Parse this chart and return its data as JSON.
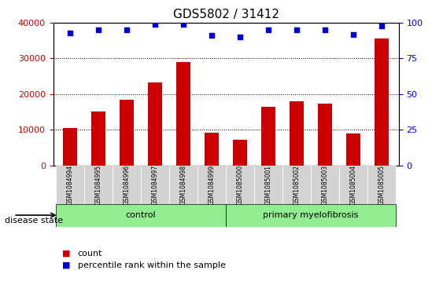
{
  "title": "GDS5802 / 31412",
  "samples": [
    "GSM1084994",
    "GSM1084995",
    "GSM1084996",
    "GSM1084997",
    "GSM1084998",
    "GSM1084999",
    "GSM1085000",
    "GSM1085001",
    "GSM1085002",
    "GSM1085003",
    "GSM1085004",
    "GSM1085005"
  ],
  "counts": [
    10500,
    15200,
    18500,
    23300,
    29000,
    9200,
    7100,
    16500,
    18000,
    17300,
    9000,
    35500
  ],
  "percentiles": [
    93,
    95,
    95,
    99,
    99,
    91,
    90,
    95,
    95,
    95,
    92,
    98
  ],
  "control_count": 6,
  "primary_count": 6,
  "ylim_left": [
    0,
    40000
  ],
  "ylim_right": [
    0,
    100
  ],
  "yticks_left": [
    0,
    10000,
    20000,
    30000,
    40000
  ],
  "yticks_right": [
    0,
    25,
    50,
    75,
    100
  ],
  "bar_color": "#cc0000",
  "dot_color": "#0000cc",
  "control_label": "control",
  "primary_label": "primary myelofibrosis",
  "disease_state_label": "disease state",
  "legend_count_label": "count",
  "legend_percentile_label": "percentile rank within the sample",
  "control_bg": "#90ee90",
  "primary_bg": "#90ee90",
  "tick_bg": "#d3d3d3",
  "grid_color": "#000000",
  "title_fontsize": 11,
  "axis_fontsize": 9,
  "tick_label_fontsize": 7
}
